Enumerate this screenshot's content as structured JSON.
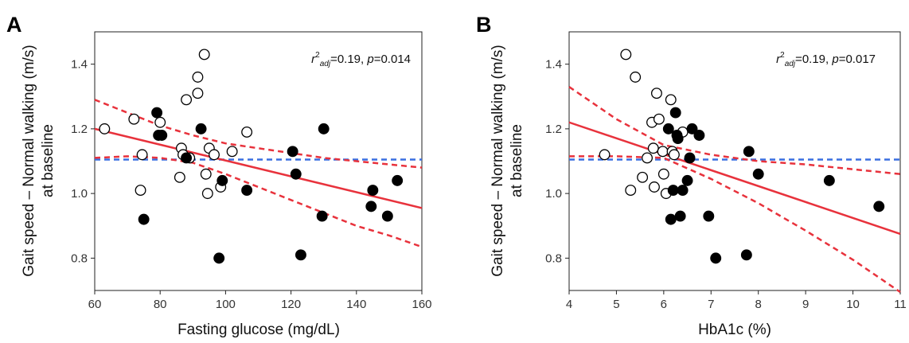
{
  "chart_data": [
    {
      "type": "scatter",
      "panel_label": "A",
      "xlabel": "Fasting glucose (mg/dL)",
      "ylabel_lines": [
        "Gait speed – Normal walking (m/s)",
        "at baseline"
      ],
      "xlim": [
        60,
        160
      ],
      "ylim": [
        0.7,
        1.5
      ],
      "x_ticks": [
        60,
        80,
        100,
        120,
        140,
        160
      ],
      "y_ticks": [
        0.8,
        1.0,
        1.2,
        1.4
      ],
      "x_tick_labels": [
        "60",
        "80",
        "100",
        "120",
        "140",
        "160"
      ],
      "y_tick_labels": [
        "0.8",
        "1.0",
        "1.2",
        "1.4"
      ],
      "annotation": {
        "r2_prefix": "r",
        "r2_sup": "2",
        "r2_sub": "adj",
        "r2_value": "=0.19, ",
        "p_label": "p",
        "p_value": "=0.014"
      },
      "grid": false,
      "series": [
        {
          "marker": "open-circle",
          "points": [
            [
              63,
              1.2
            ],
            [
              72,
              1.23
            ],
            [
              74,
              1.01
            ],
            [
              74.5,
              1.12
            ],
            [
              80,
              1.22
            ],
            [
              86,
              1.05
            ],
            [
              86.5,
              1.14
            ],
            [
              87,
              1.12
            ],
            [
              88,
              1.29
            ],
            [
              89,
              1.11
            ],
            [
              91.5,
              1.36
            ],
            [
              91.5,
              1.31
            ],
            [
              93.5,
              1.43
            ],
            [
              94,
              1.06
            ],
            [
              94.5,
              1.0
            ],
            [
              95,
              1.14
            ],
            [
              96.5,
              1.12
            ],
            [
              98.5,
              1.02
            ],
            [
              102,
              1.13
            ],
            [
              106.5,
              1.19
            ]
          ]
        },
        {
          "marker": "filled-circle",
          "points": [
            [
              75,
              0.92
            ],
            [
              79,
              1.25
            ],
            [
              79.5,
              1.18
            ],
            [
              80.5,
              1.18
            ],
            [
              88,
              1.11
            ],
            [
              92.5,
              1.2
            ],
            [
              98,
              0.8
            ],
            [
              99,
              1.04
            ],
            [
              106.5,
              1.01
            ],
            [
              120.5,
              1.13
            ],
            [
              121.5,
              1.06
            ],
            [
              123,
              0.81
            ],
            [
              129.5,
              0.93
            ],
            [
              130,
              1.2
            ],
            [
              144.5,
              0.96
            ],
            [
              145,
              1.01
            ],
            [
              149.5,
              0.93
            ],
            [
              152.5,
              1.04
            ]
          ]
        }
      ],
      "fit_line": {
        "x": [
          60,
          160
        ],
        "y": [
          1.2,
          0.955
        ],
        "color": "#e8323c"
      },
      "ci_upper": {
        "x": [
          60,
          70,
          80,
          90,
          100,
          110,
          120,
          130,
          140,
          150,
          160
        ],
        "y": [
          1.29,
          1.25,
          1.21,
          1.18,
          1.155,
          1.14,
          1.125,
          1.11,
          1.1,
          1.09,
          1.08
        ],
        "color": "#e8323c"
      },
      "ci_lower": {
        "x": [
          60,
          70,
          80,
          90,
          100,
          110,
          120,
          130,
          140,
          150,
          160
        ],
        "y": [
          1.11,
          1.115,
          1.11,
          1.095,
          1.06,
          1.02,
          0.98,
          0.94,
          0.9,
          0.87,
          0.835
        ],
        "color": "#e8323c"
      },
      "mean_line": {
        "y": 1.105,
        "color": "#3a6fe0"
      }
    },
    {
      "type": "scatter",
      "panel_label": "B",
      "xlabel": "HbA1c (%)",
      "ylabel_lines": [
        "Gait speed – Normal walking (m/s)",
        "at baseline"
      ],
      "xlim": [
        4,
        11
      ],
      "ylim": [
        0.7,
        1.5
      ],
      "x_ticks": [
        4,
        5,
        6,
        7,
        8,
        9,
        10,
        11
      ],
      "y_ticks": [
        0.8,
        1.0,
        1.2,
        1.4
      ],
      "x_tick_labels": [
        "4",
        "5",
        "6",
        "7",
        "8",
        "9",
        "10",
        "11"
      ],
      "y_tick_labels": [
        "0.8",
        "1.0",
        "1.2",
        "1.4"
      ],
      "annotation": {
        "r2_prefix": "r",
        "r2_sup": "2",
        "r2_sub": "adj",
        "r2_value": "=0.19, ",
        "p_label": "p",
        "p_value": "=0.017"
      },
      "grid": false,
      "series": [
        {
          "marker": "open-circle",
          "points": [
            [
              4.75,
              1.12
            ],
            [
              5.2,
              1.43
            ],
            [
              5.3,
              1.01
            ],
            [
              5.4,
              1.36
            ],
            [
              5.55,
              1.05
            ],
            [
              5.65,
              1.11
            ],
            [
              5.75,
              1.22
            ],
            [
              5.78,
              1.14
            ],
            [
              5.8,
              1.02
            ],
            [
              5.85,
              1.31
            ],
            [
              5.9,
              1.23
            ],
            [
              5.98,
              1.13
            ],
            [
              6.0,
              1.06
            ],
            [
              6.05,
              1.0
            ],
            [
              6.15,
              1.29
            ],
            [
              6.18,
              1.13
            ],
            [
              6.22,
              1.12
            ],
            [
              6.4,
              1.19
            ]
          ]
        },
        {
          "marker": "filled-circle",
          "points": [
            [
              6.1,
              1.2
            ],
            [
              6.15,
              0.92
            ],
            [
              6.2,
              1.01
            ],
            [
              6.25,
              1.25
            ],
            [
              6.28,
              1.18
            ],
            [
              6.3,
              1.17
            ],
            [
              6.35,
              0.93
            ],
            [
              6.4,
              1.01
            ],
            [
              6.5,
              1.04
            ],
            [
              6.55,
              1.11
            ],
            [
              6.6,
              1.2
            ],
            [
              6.75,
              1.18
            ],
            [
              6.95,
              0.93
            ],
            [
              7.1,
              0.8
            ],
            [
              7.75,
              0.81
            ],
            [
              7.8,
              1.13
            ],
            [
              8.0,
              1.06
            ],
            [
              9.5,
              1.04
            ],
            [
              10.55,
              0.96
            ]
          ]
        }
      ],
      "fit_line": {
        "x": [
          4,
          11
        ],
        "y": [
          1.22,
          0.875
        ],
        "color": "#e8323c"
      },
      "ci_upper": {
        "x": [
          4,
          5,
          6,
          7,
          8,
          9,
          10,
          11
        ],
        "y": [
          1.33,
          1.23,
          1.15,
          1.12,
          1.1,
          1.09,
          1.075,
          1.06
        ],
        "color": "#e8323c"
      },
      "ci_lower": {
        "x": [
          4,
          5,
          6,
          7,
          8,
          9,
          10,
          11
        ],
        "y": [
          1.115,
          1.115,
          1.11,
          1.045,
          0.97,
          0.885,
          0.795,
          0.695
        ],
        "color": "#e8323c"
      },
      "mean_line": {
        "y": 1.105,
        "color": "#3a6fe0"
      }
    }
  ]
}
